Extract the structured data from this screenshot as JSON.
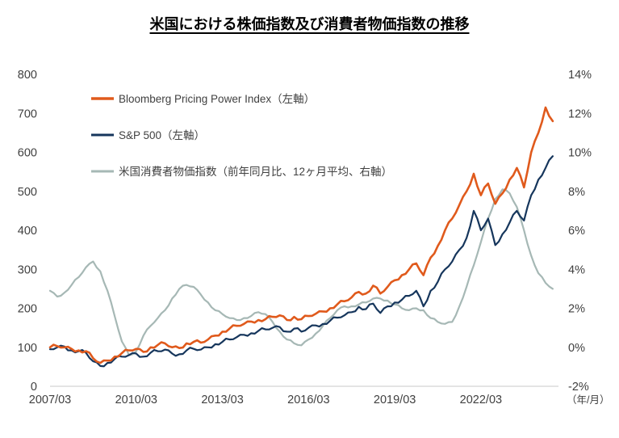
{
  "page": {
    "title": "米国における株価指数及び消費者物価指数の推移"
  },
  "chart_data": {
    "type": "line",
    "title": "米国における株価指数及び消費者物価指数の推移",
    "x_unit_label": "（年/月）",
    "grid": false,
    "legend_position": "top-left",
    "x_domain": [
      2007.25,
      2024.95
    ],
    "x_ticks": [
      {
        "x": 2007.25,
        "label": "2007/03"
      },
      {
        "x": 2010.25,
        "label": "2010/03"
      },
      {
        "x": 2013.25,
        "label": "2013/03"
      },
      {
        "x": 2016.25,
        "label": "2016/03"
      },
      {
        "x": 2019.25,
        "label": "2019/03"
      },
      {
        "x": 2022.25,
        "label": "2022/03"
      }
    ],
    "left_axis": {
      "min": 0,
      "max": 800,
      "step": 100,
      "tick_labels": [
        "0",
        "100",
        "200",
        "300",
        "400",
        "500",
        "600",
        "700",
        "800"
      ]
    },
    "right_axis": {
      "min": -2,
      "max": 14,
      "step": 2,
      "tick_labels": [
        "-2%",
        "0%",
        "2%",
        "4%",
        "6%",
        "8%",
        "10%",
        "12%",
        "14%"
      ]
    },
    "x": [
      2007.25,
      2007.5,
      2007.75,
      2008,
      2008.25,
      2008.5,
      2008.75,
      2009,
      2009.25,
      2009.5,
      2009.75,
      2010,
      2010.25,
      2010.5,
      2010.75,
      2011,
      2011.25,
      2011.5,
      2011.75,
      2012,
      2012.25,
      2012.5,
      2012.75,
      2013,
      2013.25,
      2013.5,
      2013.75,
      2014,
      2014.25,
      2014.5,
      2014.75,
      2015,
      2015.25,
      2015.5,
      2015.75,
      2016,
      2016.25,
      2016.5,
      2016.75,
      2017,
      2017.25,
      2017.5,
      2017.75,
      2018,
      2018.25,
      2018.5,
      2018.75,
      2019,
      2019.25,
      2019.5,
      2019.75,
      2020,
      2020.25,
      2020.5,
      2020.75,
      2021,
      2021.25,
      2021.5,
      2021.75,
      2022,
      2022.25,
      2022.5,
      2022.75,
      2023,
      2023.25,
      2023.5,
      2023.75,
      2024,
      2024.25,
      2024.5,
      2024.75
    ],
    "series": [
      {
        "id": "bloomberg-ppi",
        "name": "Bloomberg Pricing Power Index（左軸）",
        "axis": "left",
        "color": "#E05A1C",
        "width": 2.6,
        "values": [
          100,
          103,
          100,
          96,
          92,
          90,
          72,
          60,
          66,
          76,
          85,
          92,
          96,
          88,
          100,
          106,
          110,
          100,
          98,
          110,
          114,
          112,
          120,
          130,
          140,
          148,
          155,
          160,
          166,
          170,
          172,
          178,
          182,
          170,
          178,
          172,
          180,
          186,
          192,
          200,
          210,
          218,
          228,
          242,
          238,
          258,
          238,
          255,
          272,
          285,
          300,
          315,
          285,
          330,
          360,
          400,
          430,
          465,
          500,
          545,
          490,
          520,
          468,
          495,
          530,
          560,
          510,
          600,
          650,
          715,
          680
        ]
      },
      {
        "id": "sp500",
        "name": "S&P 500（左軸）",
        "axis": "left",
        "color": "#16365C",
        "width": 2.2,
        "values": [
          95,
          100,
          102,
          92,
          90,
          86,
          64,
          52,
          60,
          70,
          76,
          80,
          84,
          76,
          86,
          90,
          94,
          84,
          82,
          92,
          96,
          94,
          100,
          108,
          114,
          120,
          126,
          132,
          136,
          142,
          146,
          150,
          152,
          140,
          148,
          140,
          150,
          156,
          160,
          168,
          176,
          182,
          190,
          204,
          198,
          212,
          188,
          205,
          215,
          222,
          232,
          245,
          205,
          245,
          268,
          300,
          320,
          350,
          380,
          450,
          400,
          430,
          362,
          390,
          420,
          450,
          425,
          490,
          530,
          560,
          590
        ]
      },
      {
        "id": "us-cpi",
        "name": "米国消費者物価指数（前年同月比、12ヶ月平均、右軸）",
        "axis": "right",
        "color": "#A6B8B5",
        "width": 2.2,
        "values": [
          2.9,
          2.6,
          2.8,
          3.2,
          3.6,
          4.1,
          4.4,
          3.9,
          2.9,
          1.6,
          0.3,
          -0.4,
          -0.2,
          0.6,
          1.1,
          1.5,
          1.9,
          2.5,
          3.0,
          3.2,
          3.1,
          2.7,
          2.3,
          1.9,
          1.7,
          1.5,
          1.4,
          1.5,
          1.6,
          1.8,
          1.7,
          1.3,
          0.8,
          0.4,
          0.2,
          0.1,
          0.4,
          0.7,
          1.1,
          1.5,
          1.9,
          2.1,
          2.1,
          2.2,
          2.3,
          2.5,
          2.5,
          2.4,
          2.2,
          2.0,
          1.9,
          2.0,
          1.9,
          1.5,
          1.3,
          1.2,
          1.3,
          2.1,
          3.1,
          4.2,
          5.4,
          6.6,
          7.6,
          8.1,
          7.9,
          7.2,
          6.0,
          4.7,
          3.8,
          3.3,
          3.0
        ]
      }
    ]
  }
}
